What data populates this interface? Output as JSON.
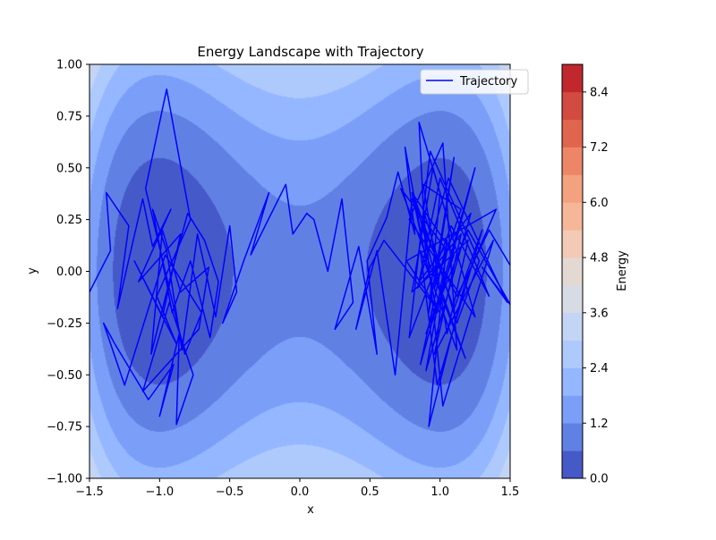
{
  "chart_data": {
    "type": "contour",
    "title": "Energy Landscape with Trajectory",
    "xlabel": "x",
    "ylabel": "y",
    "xlim": [
      -1.5,
      1.5
    ],
    "ylim": [
      -1.0,
      1.0
    ],
    "xticks": [
      -1.5,
      -1.0,
      -0.5,
      0.0,
      0.5,
      1.0,
      1.5
    ],
    "xtick_labels": [
      "−1.5",
      "−1.0",
      "−0.5",
      "0.0",
      "0.5",
      "1.0",
      "1.5"
    ],
    "yticks": [
      -1.0,
      -0.75,
      -0.5,
      -0.25,
      0.0,
      0.25,
      0.5,
      0.75,
      1.0
    ],
    "ytick_labels": [
      "−1.00",
      "−0.75",
      "−0.50",
      "−0.25",
      "0.00",
      "0.25",
      "0.50",
      "0.75",
      "1.00"
    ],
    "colormap": "coolwarm",
    "energy_function": "(x^2 - 1)^2 + 2*y^2 (double-well, minima at x = ±1)",
    "levels": [
      0.0,
      0.6,
      1.2,
      1.8,
      2.4,
      3.0,
      3.6,
      4.2,
      4.8,
      5.4,
      6.0,
      6.6,
      7.2,
      7.8,
      8.4,
      9.0
    ],
    "level_colors": [
      "#4659c8",
      "#6180e4",
      "#7b9ff9",
      "#95b7ff",
      "#aec9fc",
      "#c3d4f4",
      "#d6dbe4",
      "#e3d8d2",
      "#f2cab5",
      "#f6b698",
      "#f4a17f",
      "#ec8667",
      "#e0654f",
      "#d24b40",
      "#c0282d"
    ],
    "colorbar": {
      "label": "Energy",
      "ticks": [
        0.0,
        1.2,
        2.4,
        3.6,
        4.8,
        6.0,
        7.2,
        8.4
      ],
      "tick_labels": [
        "0.0",
        "1.2",
        "2.4",
        "3.6",
        "4.8",
        "6.0",
        "7.2",
        "8.4"
      ],
      "range": [
        0.0,
        9.0
      ]
    },
    "legend": {
      "position": "upper right",
      "entries": [
        {
          "name": "Trajectory",
          "color": "#0000ff"
        }
      ]
    },
    "series": [
      {
        "name": "Trajectory",
        "color": "#0000ff",
        "style": "line",
        "x": [
          -1.5,
          -1.35,
          -1.38,
          -1.22,
          -1.3,
          -1.12,
          -1.05,
          -0.92,
          -1.15,
          -0.85,
          -0.98,
          -1.18,
          -0.88,
          -1.02,
          -0.78,
          -0.95,
          -1.1,
          -0.82,
          -0.7,
          -0.96,
          -1.25,
          -1.4,
          -1.32,
          -1.08,
          -0.9,
          -1.0,
          -0.86,
          -0.88,
          -0.76,
          -0.93,
          -1.12,
          -0.72,
          -0.65,
          -0.85,
          -0.98,
          -1.06,
          -0.92,
          -0.8,
          -0.68,
          -0.58,
          -0.64,
          -0.78,
          -0.91,
          -1.05,
          -0.95,
          -0.84,
          -0.73,
          -0.6,
          -0.5,
          -0.45,
          -0.55,
          -0.4,
          -0.22,
          -0.35,
          -0.1,
          -0.05,
          0.05,
          0.1,
          0.2,
          0.3,
          0.38,
          0.25,
          0.42,
          0.55,
          0.48,
          0.62,
          0.7,
          0.82,
          0.75,
          0.9,
          0.85,
          1.0,
          0.92,
          1.1,
          0.96,
          1.15,
          0.88,
          1.05,
          1.2,
          0.8,
          0.95,
          1.25,
          0.78,
          1.02,
          1.12,
          0.86,
          0.98,
          1.3,
          1.1,
          0.82,
          0.95,
          1.18,
          0.72,
          1.05,
          0.9,
          1.22,
          0.85,
          1.0,
          1.35,
          1.08,
          0.78,
          0.93,
          1.28,
          1.12,
          0.88,
          1.02,
          1.38,
          0.96,
          1.15,
          0.84,
          1.06,
          1.48,
          1.3,
          1.5,
          1.2,
          0.9,
          1.1,
          0.8,
          0.98,
          1.25,
          0.86,
          1.05,
          0.92,
          1.18,
          1.4,
          0.76,
          1.0,
          0.6,
          0.5,
          0.4,
          0.55,
          0.68,
          0.8,
          0.95,
          1.12,
          1.35,
          1.5
        ],
        "y": [
          -0.1,
          0.1,
          0.38,
          0.22,
          -0.18,
          0.35,
          0.12,
          0.3,
          -0.05,
          0.18,
          -0.22,
          0.05,
          -0.35,
          -0.12,
          0.25,
          0.88,
          0.4,
          -0.4,
          -0.2,
          0.08,
          -0.55,
          -0.25,
          -0.35,
          -0.62,
          -0.45,
          -0.7,
          -0.3,
          -0.74,
          -0.5,
          -0.15,
          -0.58,
          -0.28,
          0.02,
          -0.1,
          0.2,
          -0.4,
          -0.02,
          0.28,
          0.15,
          -0.05,
          -0.32,
          0.05,
          -0.2,
          0.3,
          0.1,
          -0.38,
          0.18,
          -0.22,
          0.22,
          -0.1,
          -0.25,
          0.05,
          0.38,
          0.08,
          0.42,
          0.18,
          0.28,
          0.25,
          0.0,
          0.35,
          -0.15,
          -0.28,
          0.12,
          -0.4,
          0.05,
          0.26,
          0.48,
          0.18,
          0.6,
          0.05,
          0.72,
          0.38,
          -0.2,
          0.55,
          -0.08,
          0.3,
          0.42,
          -0.3,
          0.15,
          -0.1,
          0.5,
          -0.22,
          0.25,
          0.62,
          -0.38,
          0.1,
          -0.55,
          0.2,
          -0.18,
          0.35,
          0.02,
          -0.42,
          0.4,
          0.1,
          -0.48,
          0.28,
          -0.05,
          0.45,
          -0.12,
          0.22,
          -0.32,
          0.58,
          0.05,
          -0.25,
          0.3,
          -0.65,
          0.15,
          -0.4,
          0.18,
          -0.08,
          0.45,
          -0.15,
          0.02,
          -0.16,
          0.2,
          -0.3,
          0.08,
          0.38,
          -0.2,
          0.5,
          -0.45,
          0.15,
          -0.75,
          -0.05,
          0.3,
          0.05,
          -0.2,
          0.15,
          0.02,
          -0.28,
          0.1,
          -0.5,
          0.35,
          0.1,
          -0.12,
          0.2,
          0.03
        ]
      }
    ]
  }
}
